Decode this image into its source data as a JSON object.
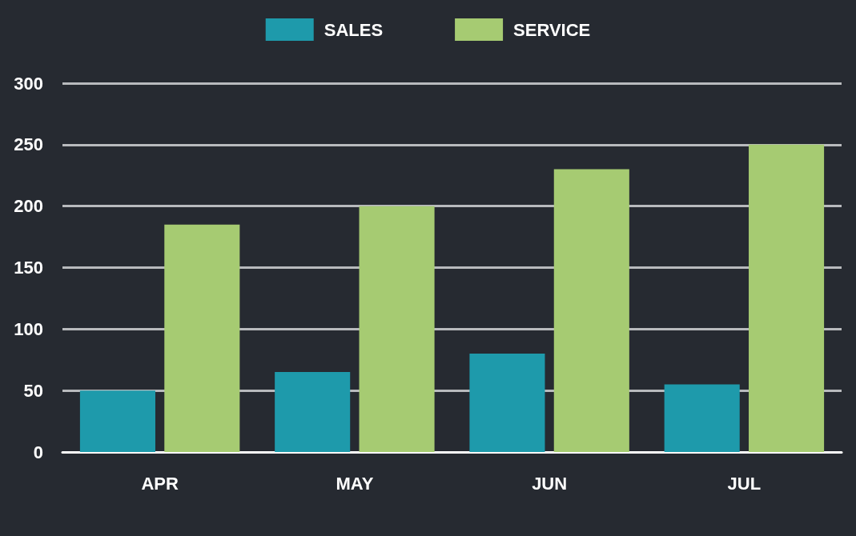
{
  "chart_data": {
    "type": "bar",
    "categories": [
      "APR",
      "MAY",
      "JUN",
      "JUL"
    ],
    "series": [
      {
        "name": "SALES",
        "color": "#1e9aab",
        "values": [
          50,
          65,
          80,
          55
        ]
      },
      {
        "name": "SERVICE",
        "color": "#a6cb72",
        "values": [
          185,
          200,
          230,
          250
        ]
      }
    ],
    "ylim": [
      0,
      300
    ],
    "yticks": [
      0,
      50,
      100,
      150,
      200,
      250,
      300
    ],
    "grid": "y",
    "legend": "top"
  }
}
